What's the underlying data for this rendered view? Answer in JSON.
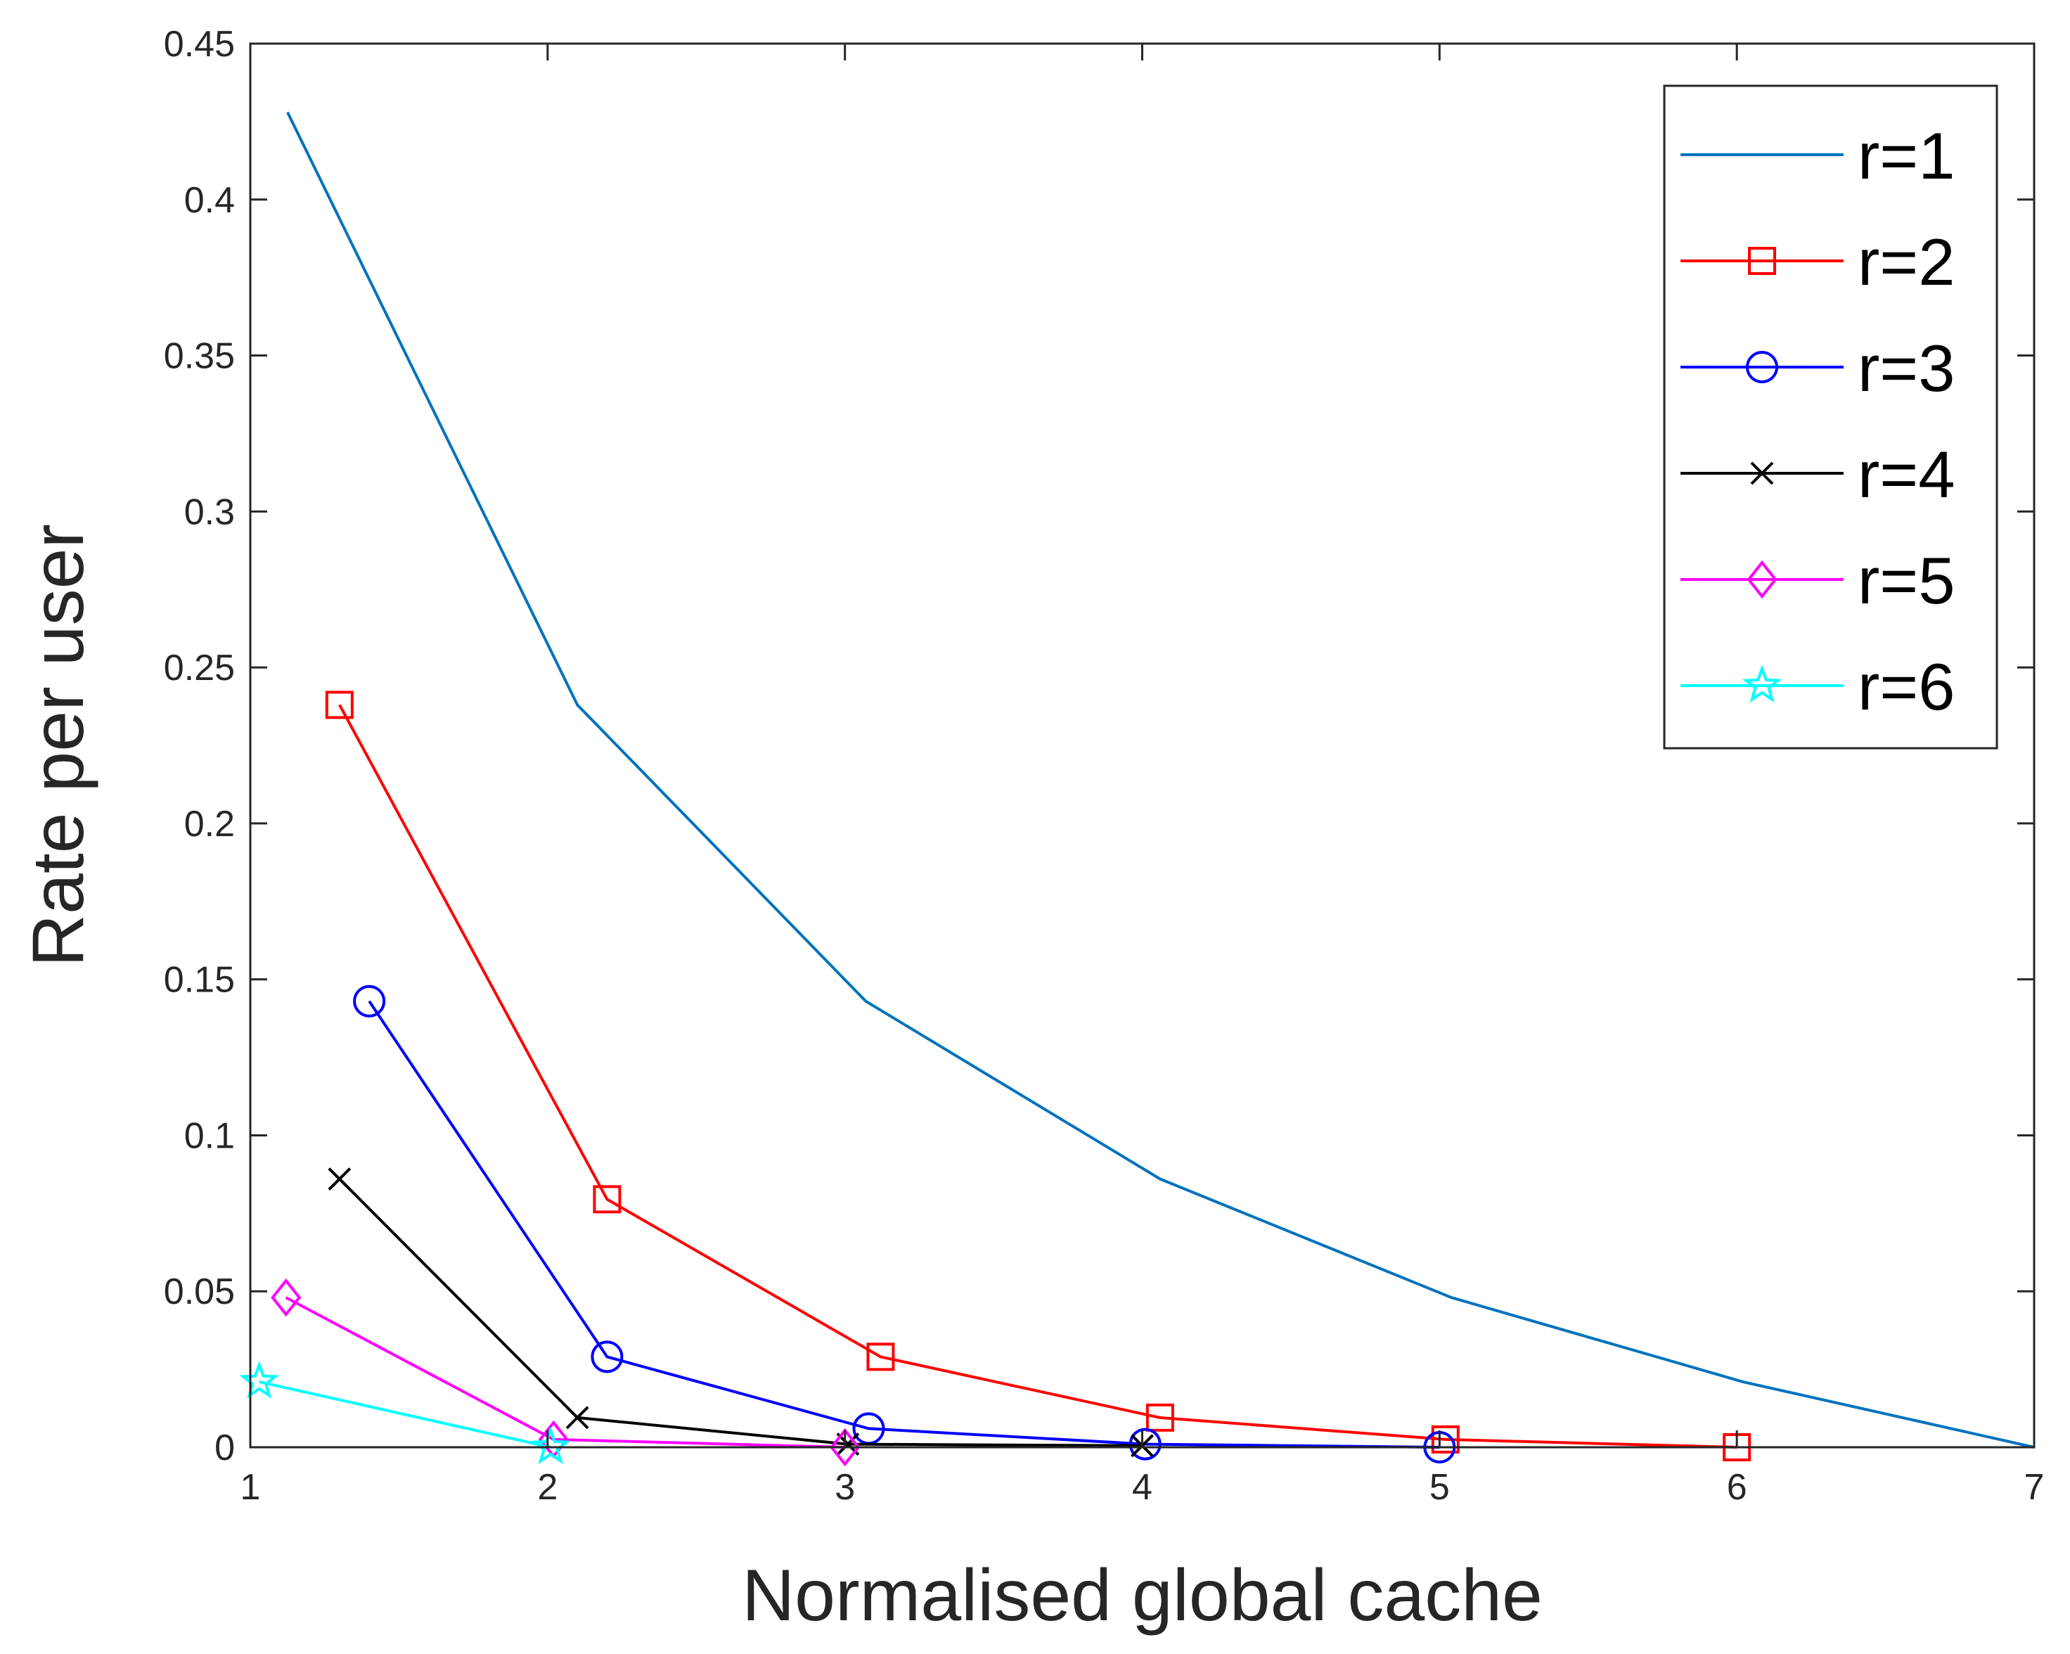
{
  "chart_data": {
    "type": "line",
    "xlabel": "Normalised global cache",
    "ylabel": "Rate per user",
    "xlim": [
      1,
      7
    ],
    "ylim": [
      0,
      0.45
    ],
    "x_ticks": [
      "1",
      "2",
      "3",
      "4",
      "5",
      "6",
      "7"
    ],
    "y_ticks": [
      "0",
      "0.05",
      "0.1",
      "0.15",
      "0.2",
      "0.25",
      "0.3",
      "0.35",
      "0.4",
      "0.45"
    ],
    "grid": false,
    "legend_position": "top-right",
    "series": [
      {
        "name": "r=1",
        "color": "#0072BD",
        "marker": "none",
        "x": [
          1.125,
          2.1,
          3.07,
          4.06,
          5.04,
          6.02,
          7.0
        ],
        "y": [
          0.428,
          0.238,
          0.143,
          0.086,
          0.048,
          0.021,
          0.0
        ]
      },
      {
        "name": "r=2",
        "color": "#FF0000",
        "marker": "square",
        "x": [
          1.3,
          2.2,
          3.12,
          4.06,
          5.02,
          6.0
        ],
        "y": [
          0.238,
          0.0795,
          0.029,
          0.0095,
          0.0025,
          0.0
        ]
      },
      {
        "name": "r=3",
        "color": "#0000FF",
        "marker": "circle",
        "x": [
          1.4,
          2.2,
          3.08,
          4.01,
          5.0
        ],
        "y": [
          0.143,
          0.029,
          0.006,
          0.001,
          0.0
        ]
      },
      {
        "name": "r=4",
        "color": "#000000",
        "marker": "x",
        "x": [
          1.3,
          2.1,
          3.01,
          4.0
        ],
        "y": [
          0.086,
          0.0095,
          0.001,
          0.0005
        ]
      },
      {
        "name": "r=5",
        "color": "#FF00FF",
        "marker": "diamond",
        "x": [
          1.12,
          2.02,
          3.0
        ],
        "y": [
          0.048,
          0.0025,
          0.0
        ]
      },
      {
        "name": "r=6",
        "color": "#00FFFF",
        "marker": "star",
        "x": [
          1.03,
          2.01
        ],
        "y": [
          0.021,
          0.0
        ]
      }
    ]
  }
}
